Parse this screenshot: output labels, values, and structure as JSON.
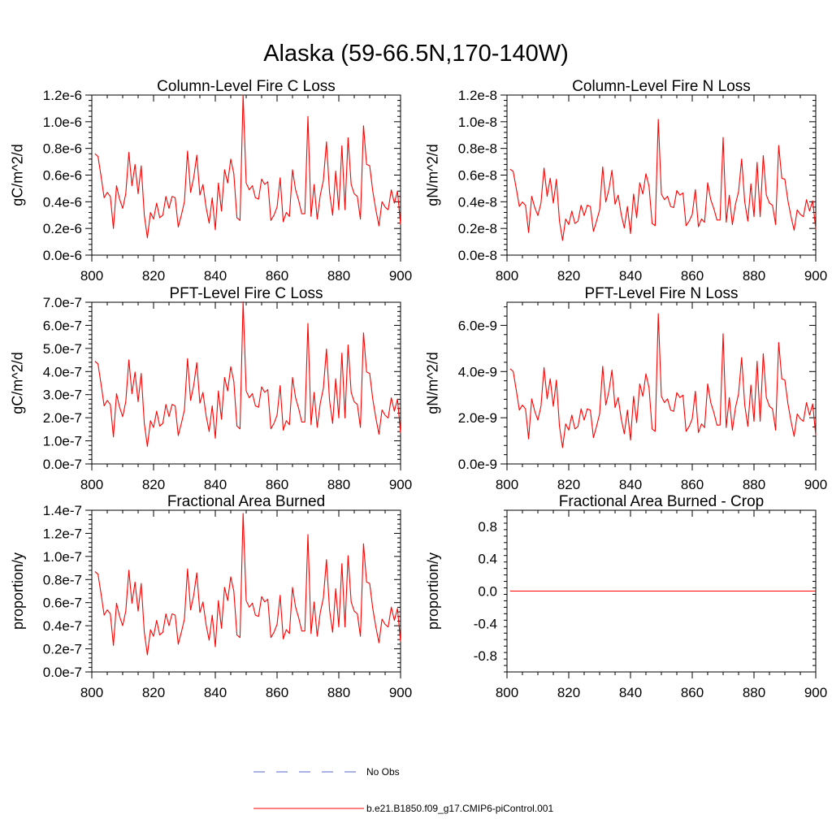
{
  "page_title": "Alaska (59-66.5N,170-140W)",
  "colors": {
    "model_line": "#ff0000",
    "obs_line": "#5566cc",
    "axis": "#000000"
  },
  "legend": [
    {
      "label": "No Obs",
      "style": "dashed",
      "color": "#5566cc"
    },
    {
      "label": "b.e21.B1850.f09_g17.CMIP6-piControl.001",
      "style": "solid",
      "color": "#ff0000"
    }
  ],
  "chart_data": [
    {
      "id": "col_c",
      "type": "line",
      "title": "Column-Level Fire C Loss",
      "ylabel": "gC/m^2/d",
      "xlim": [
        800,
        900
      ],
      "ylim": [
        0,
        1.2e-06
      ],
      "xticks": [
        800,
        820,
        840,
        860,
        880,
        900
      ],
      "yticks": [
        0,
        2e-07,
        4e-07,
        6e-07,
        8e-07,
        1e-06,
        1.2e-06
      ],
      "ytick_labels": [
        "0.0e-6",
        "0.2e-6",
        "0.4e-6",
        "0.6e-6",
        "0.8e-6",
        "1.0e-6",
        "1.2e-6"
      ],
      "series": [
        {
          "name": "b.e21.B1850.f09_g17.CMIP6-piControl.001",
          "scale": 1.0
        }
      ]
    },
    {
      "id": "col_n",
      "type": "line",
      "title": "Column-Level Fire N Loss",
      "ylabel": "gN/m^2/d",
      "xlim": [
        800,
        900
      ],
      "ylim": [
        0,
        1.2e-08
      ],
      "xticks": [
        800,
        820,
        840,
        860,
        880,
        900
      ],
      "yticks": [
        0,
        2e-09,
        4e-09,
        6e-09,
        8e-09,
        1e-08,
        1.2e-08
      ],
      "ytick_labels": [
        "0.0e-8",
        "0.2e-8",
        "0.4e-8",
        "0.6e-8",
        "0.8e-8",
        "1.0e-8",
        "1.2e-8"
      ],
      "series": [
        {
          "name": "b.e21.B1850.f09_g17.CMIP6-piControl.001",
          "scale": 0.00848
        }
      ]
    },
    {
      "id": "pft_c",
      "type": "line",
      "title": "PFT-Level Fire C Loss",
      "ylabel": "gC/m^2/d",
      "xlim": [
        800,
        900
      ],
      "ylim": [
        0,
        7e-07
      ],
      "xticks": [
        800,
        820,
        840,
        860,
        880,
        900
      ],
      "yticks": [
        0,
        1e-07,
        2e-07,
        3e-07,
        4e-07,
        5e-07,
        6e-07,
        7e-07
      ],
      "ytick_labels": [
        "0.0e-7",
        "1.0e-7",
        "2.0e-7",
        "3.0e-7",
        "4.0e-7",
        "5.0e-7",
        "6.0e-7",
        "7.0e-7"
      ],
      "series": [
        {
          "name": "b.e21.B1850.f09_g17.CMIP6-piControl.001",
          "scale": 0.585
        }
      ]
    },
    {
      "id": "pft_n",
      "type": "line",
      "title": "PFT-Level Fire N Loss",
      "ylabel": "gN/m^2/d",
      "xlim": [
        800,
        900
      ],
      "ylim": [
        0,
        7e-09
      ],
      "xticks": [
        800,
        820,
        840,
        860,
        880,
        900
      ],
      "yticks": [
        0,
        2e-09,
        4e-09,
        6e-09
      ],
      "ytick_labels": [
        "0.0e-9",
        "2.0e-9",
        "4.0e-9",
        "6.0e-9"
      ],
      "series": [
        {
          "name": "b.e21.B1850.f09_g17.CMIP6-piControl.001",
          "scale": 0.00542
        }
      ]
    },
    {
      "id": "area",
      "type": "line",
      "title": "Fractional Area Burned",
      "ylabel": "proportion/y",
      "xlim": [
        800,
        900
      ],
      "ylim": [
        0,
        1.4e-07
      ],
      "xticks": [
        800,
        820,
        840,
        860,
        880,
        900
      ],
      "yticks": [
        0,
        2e-08,
        4e-08,
        6e-08,
        8e-08,
        1e-07,
        1.2e-07,
        1.4e-07
      ],
      "ytick_labels": [
        "0.0e-7",
        "0.2e-7",
        "0.4e-7",
        "0.6e-7",
        "0.8e-7",
        "1.0e-7",
        "1.2e-7",
        "1.4e-7"
      ],
      "series": [
        {
          "name": "b.e21.B1850.f09_g17.CMIP6-piControl.001",
          "scale": 0.1144
        }
      ]
    },
    {
      "id": "area_crop",
      "type": "line",
      "title": "Fractional Area Burned - Crop",
      "ylabel": "proportion/y",
      "xlim": [
        800,
        900
      ],
      "ylim": [
        -1,
        1
      ],
      "xticks": [
        800,
        820,
        840,
        860,
        880,
        900
      ],
      "yticks": [
        -0.8,
        -0.4,
        0,
        0.4,
        0.8
      ],
      "ytick_labels": [
        "-0.8",
        "-0.4",
        "0.0",
        "0.4",
        "0.8"
      ],
      "series": [
        {
          "name": "b.e21.B1850.f09_g17.CMIP6-piControl.001",
          "scale": 0,
          "constant": 0
        }
      ]
    }
  ],
  "base_series": {
    "note": "Column-level C loss in gC/m^2/d; other panels = base value x panel scale",
    "x": [
      801,
      802,
      803,
      804,
      805,
      806,
      807,
      808,
      809,
      810,
      811,
      812,
      813,
      814,
      815,
      816,
      817,
      818,
      819,
      820,
      821,
      822,
      823,
      824,
      825,
      826,
      827,
      828,
      829,
      830,
      831,
      832,
      833,
      834,
      835,
      836,
      837,
      838,
      839,
      840,
      841,
      842,
      843,
      844,
      845,
      846,
      847,
      848,
      849,
      850,
      851,
      852,
      853,
      854,
      855,
      856,
      857,
      858,
      859,
      860,
      861,
      862,
      863,
      864,
      865,
      866,
      867,
      868,
      869,
      870,
      871,
      872,
      873,
      874,
      875,
      876,
      877,
      878,
      879,
      880,
      881,
      882,
      883,
      884,
      885,
      886,
      887,
      888,
      889,
      890,
      891,
      892,
      893,
      894,
      895,
      896,
      897,
      898,
      899,
      900
    ],
    "values": [
      7.6e-07,
      7.4e-07,
      5.9e-07,
      4.3e-07,
      4.7e-07,
      4.4e-07,
      2e-07,
      5.2e-07,
      4.2e-07,
      3.5e-07,
      4.6e-07,
      7.7e-07,
      5.2e-07,
      6.8e-07,
      4.6e-07,
      6.7e-07,
      3e-07,
      1.3e-07,
      3.2e-07,
      2.7e-07,
      3.9e-07,
      2.8e-07,
      3e-07,
      4.4e-07,
      3.5e-07,
      4.4e-07,
      4.3e-07,
      2.1e-07,
      3e-07,
      4e-07,
      7.8e-07,
      4.7e-07,
      5.8e-07,
      7.5e-07,
      4.5e-07,
      5.3e-07,
      3.6e-07,
      2.4e-07,
      4.3e-07,
      1.9e-07,
      5.4e-07,
      3.3e-07,
      6.4e-07,
      5.4e-07,
      7.2e-07,
      6.1e-07,
      2.8e-07,
      2.6e-07,
      1.2e-06,
      5.4e-07,
      4.9e-07,
      5.2e-07,
      4.3e-07,
      4.2e-07,
      5.7e-07,
      5.3e-07,
      5.5e-07,
      2.6e-07,
      3e-07,
      3.6e-07,
      5.8e-07,
      2.5e-07,
      3.2e-07,
      2.9e-07,
      6.4e-07,
      4.9e-07,
      4.1e-07,
      3.1e-07,
      3.1e-07,
      1.04e-06,
      2.9e-07,
      5.3e-07,
      2.7e-07,
      4.5e-07,
      5.6e-07,
      8.5e-07,
      4.7e-07,
      3e-07,
      6.3e-07,
      3.4e-07,
      8.2e-07,
      3.4e-07,
      8.8e-07,
      5.3e-07,
      4.6e-07,
      4.4e-07,
      2.7e-07,
      9.7e-07,
      6.8e-07,
      6.7e-07,
      4.8e-07,
      3.4e-07,
      2.2e-07,
      4e-07,
      3.6e-07,
      3.4e-07,
      4.9e-07,
      3.9e-07,
      4.8e-07,
      2.3e-07
    ]
  }
}
